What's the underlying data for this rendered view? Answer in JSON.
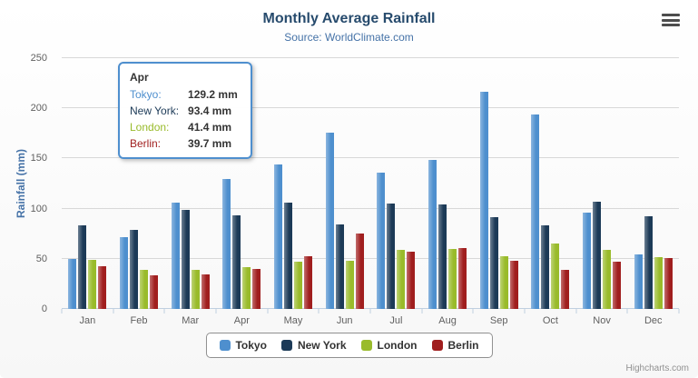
{
  "header": {
    "title": "Monthly Average Rainfall",
    "subtitle": "Source: WorldClimate.com",
    "menu_icon": "hamburger-menu-icon"
  },
  "chart_data": {
    "type": "bar",
    "title": "Monthly Average Rainfall",
    "subtitle": "Source: WorldClimate.com",
    "xlabel": "",
    "ylabel": "Rainfall (mm)",
    "ylim": [
      0,
      250
    ],
    "yticks": [
      0,
      50,
      100,
      150,
      200,
      250
    ],
    "grid": true,
    "legend_position": "bottom",
    "categories": [
      "Jan",
      "Feb",
      "Mar",
      "Apr",
      "May",
      "Jun",
      "Jul",
      "Aug",
      "Sep",
      "Oct",
      "Nov",
      "Dec"
    ],
    "series": [
      {
        "name": "Tokyo",
        "color": "#4e8fce",
        "values": [
          49.9,
          71.5,
          106.4,
          129.2,
          144.0,
          176.0,
          135.6,
          148.5,
          216.4,
          194.1,
          95.6,
          54.4
        ]
      },
      {
        "name": "New York",
        "color": "#1c3a57",
        "values": [
          83.6,
          78.8,
          98.5,
          93.4,
          106.0,
          84.5,
          105.0,
          104.3,
          91.2,
          83.5,
          106.6,
          92.3
        ]
      },
      {
        "name": "London",
        "color": "#99bb2b",
        "values": [
          48.9,
          38.8,
          39.3,
          41.4,
          47.0,
          48.3,
          59.0,
          59.6,
          52.4,
          65.2,
          59.3,
          51.2
        ]
      },
      {
        "name": "Berlin",
        "color": "#a01e1e",
        "values": [
          42.4,
          33.2,
          34.5,
          39.7,
          52.6,
          75.5,
          57.4,
          60.4,
          47.6,
          39.1,
          46.8,
          51.1
        ]
      }
    ]
  },
  "tooltip": {
    "header": "Apr",
    "rows": [
      {
        "label": "Tokyo:",
        "value": "129.2 mm",
        "color": "#4e8fce"
      },
      {
        "label": "New York:",
        "value": "93.4 mm",
        "color": "#1c3a57"
      },
      {
        "label": "London:",
        "value": "41.4 mm",
        "color": "#99bb2b"
      },
      {
        "label": "Berlin:",
        "value": "39.7 mm",
        "color": "#a01e1e"
      }
    ],
    "border_color": "#4e8fce"
  },
  "legend": {
    "items": [
      "Tokyo",
      "New York",
      "London",
      "Berlin"
    ]
  },
  "credits": {
    "label": "Highcharts.com"
  }
}
